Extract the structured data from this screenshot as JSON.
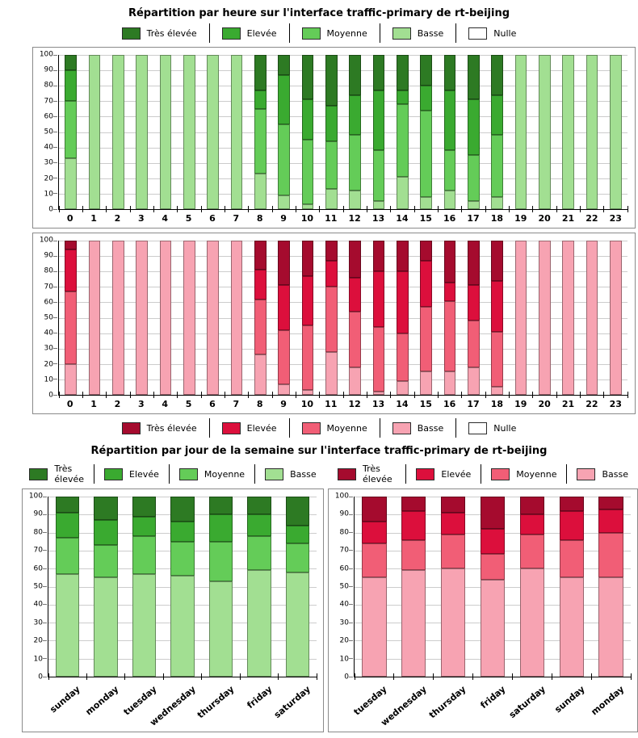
{
  "titles": {
    "hourly": "Répartition par heure sur l'interface traffic-primary de rt-beijing",
    "daily": "Répartition par jour de la semaine sur l'interface traffic-primary de rt-beijing"
  },
  "colors": {
    "green": {
      "tres_elevee": "#2d7a23",
      "elevee": "#3aaa30",
      "moyenne": "#64cc58",
      "basse": "#a2df92",
      "nulle": "#ffffff"
    },
    "red": {
      "tres_elevee": "#a50b2e",
      "elevee": "#dc0f3c",
      "moyenne": "#f15e76",
      "basse": "#f7a3b2",
      "nulle": "#ffffff"
    }
  },
  "chart_data": [
    {
      "id": "hourly-green",
      "type": "bar",
      "stacked": true,
      "title": "Répartition par heure sur l'interface traffic-primary de rt-beijing",
      "palette": "green",
      "legend": [
        {
          "label": "Très élevée",
          "key": "tres_elevee"
        },
        {
          "label": "Elevée",
          "key": "elevee"
        },
        {
          "label": "Moyenne",
          "key": "moyenne"
        },
        {
          "label": "Basse",
          "key": "basse"
        },
        {
          "label": "Nulle",
          "key": "nulle"
        }
      ],
      "categories": [
        "0",
        "1",
        "2",
        "3",
        "4",
        "5",
        "6",
        "7",
        "8",
        "9",
        "10",
        "11",
        "12",
        "13",
        "14",
        "15",
        "16",
        "17",
        "18",
        "19",
        "20",
        "21",
        "22",
        "23"
      ],
      "ylim": [
        0,
        100
      ],
      "ytick_step": 10,
      "grid": true,
      "xlabel_rotation": 0,
      "stack_order": "bottom-to-top",
      "series": [
        {
          "name": "Basse",
          "key": "basse",
          "values": [
            33,
            100,
            100,
            100,
            100,
            100,
            100,
            100,
            23,
            9,
            3,
            13,
            12,
            5,
            21,
            8,
            12,
            5,
            8,
            100,
            100,
            100,
            100,
            100
          ]
        },
        {
          "name": "Moyenne",
          "key": "moyenne",
          "values": [
            37,
            0,
            0,
            0,
            0,
            0,
            0,
            0,
            42,
            46,
            42,
            31,
            36,
            33,
            47,
            56,
            26,
            30,
            40,
            0,
            0,
            0,
            0,
            0
          ]
        },
        {
          "name": "Elevée",
          "key": "elevee",
          "values": [
            20,
            0,
            0,
            0,
            0,
            0,
            0,
            0,
            12,
            32,
            26,
            23,
            26,
            39,
            9,
            16,
            39,
            36,
            26,
            0,
            0,
            0,
            0,
            0
          ]
        },
        {
          "name": "Très élevée",
          "key": "tres_elevee",
          "values": [
            10,
            0,
            0,
            0,
            0,
            0,
            0,
            0,
            23,
            13,
            29,
            33,
            26,
            23,
            23,
            20,
            23,
            29,
            26,
            0,
            0,
            0,
            0,
            0
          ]
        }
      ]
    },
    {
      "id": "hourly-red",
      "type": "bar",
      "stacked": true,
      "title": "Répartition par heure sur l'interface traffic-primary de rt-beijing",
      "palette": "red",
      "legend": [
        {
          "label": "Très élevée",
          "key": "tres_elevee"
        },
        {
          "label": "Elevée",
          "key": "elevee"
        },
        {
          "label": "Moyenne",
          "key": "moyenne"
        },
        {
          "label": "Basse",
          "key": "basse"
        },
        {
          "label": "Nulle",
          "key": "nulle"
        }
      ],
      "categories": [
        "0",
        "1",
        "2",
        "3",
        "4",
        "5",
        "6",
        "7",
        "8",
        "9",
        "10",
        "11",
        "12",
        "13",
        "14",
        "15",
        "16",
        "17",
        "18",
        "19",
        "20",
        "21",
        "22",
        "23"
      ],
      "ylim": [
        0,
        100
      ],
      "ytick_step": 10,
      "grid": true,
      "xlabel_rotation": 0,
      "stack_order": "bottom-to-top",
      "series": [
        {
          "name": "Basse",
          "key": "basse",
          "values": [
            20,
            100,
            100,
            100,
            100,
            100,
            100,
            100,
            26,
            7,
            3,
            28,
            18,
            2,
            9,
            15,
            15,
            18,
            5,
            100,
            100,
            100,
            100,
            100
          ]
        },
        {
          "name": "Moyenne",
          "key": "moyenne",
          "values": [
            47,
            0,
            0,
            0,
            0,
            0,
            0,
            0,
            36,
            35,
            42,
            42,
            36,
            42,
            31,
            42,
            46,
            30,
            36,
            0,
            0,
            0,
            0,
            0
          ]
        },
        {
          "name": "Elevée",
          "key": "elevee",
          "values": [
            27,
            0,
            0,
            0,
            0,
            0,
            0,
            0,
            19,
            29,
            32,
            17,
            22,
            36,
            40,
            30,
            12,
            23,
            33,
            0,
            0,
            0,
            0,
            0
          ]
        },
        {
          "name": "Très élevée",
          "key": "tres_elevee",
          "values": [
            6,
            0,
            0,
            0,
            0,
            0,
            0,
            0,
            19,
            29,
            23,
            13,
            24,
            20,
            20,
            13,
            27,
            29,
            26,
            0,
            0,
            0,
            0,
            0
          ]
        }
      ]
    },
    {
      "id": "daily-green",
      "type": "bar",
      "stacked": true,
      "title": "Répartition par jour de la semaine sur l'interface traffic-primary de rt-beijing",
      "palette": "green",
      "legend": [
        {
          "label": "Très élevée",
          "key": "tres_elevee"
        },
        {
          "label": "Elevée",
          "key": "elevee"
        },
        {
          "label": "Moyenne",
          "key": "moyenne"
        },
        {
          "label": "Basse",
          "key": "basse"
        }
      ],
      "categories": [
        "sunday",
        "monday",
        "tuesday",
        "wednesday",
        "thursday",
        "friday",
        "saturday"
      ],
      "ylim": [
        0,
        100
      ],
      "ytick_step": 10,
      "grid": true,
      "xlabel_rotation": 40,
      "stack_order": "bottom-to-top",
      "series": [
        {
          "name": "Basse",
          "key": "basse",
          "values": [
            57,
            55,
            57,
            56,
            53,
            59,
            58
          ]
        },
        {
          "name": "Moyenne",
          "key": "moyenne",
          "values": [
            20,
            18,
            21,
            19,
            22,
            19,
            16
          ]
        },
        {
          "name": "Elevée",
          "key": "elevee",
          "values": [
            14,
            14,
            11,
            11,
            15,
            12,
            10
          ]
        },
        {
          "name": "Très élevée",
          "key": "tres_elevee",
          "values": [
            9,
            13,
            11,
            14,
            10,
            10,
            16
          ]
        }
      ]
    },
    {
      "id": "daily-red",
      "type": "bar",
      "stacked": true,
      "title": "Répartition par jour de la semaine sur l'interface traffic-primary de rt-beijing",
      "palette": "red",
      "legend": [
        {
          "label": "Très élevée",
          "key": "tres_elevee"
        },
        {
          "label": "Elevée",
          "key": "elevee"
        },
        {
          "label": "Moyenne",
          "key": "moyenne"
        },
        {
          "label": "Basse",
          "key": "basse"
        }
      ],
      "categories": [
        "tuesday",
        "wednesday",
        "thursday",
        "friday",
        "saturday",
        "sunday",
        "monday"
      ],
      "ylim": [
        0,
        100
      ],
      "ytick_step": 10,
      "grid": true,
      "xlabel_rotation": 40,
      "stack_order": "bottom-to-top",
      "series": [
        {
          "name": "Basse",
          "key": "basse",
          "values": [
            55,
            59,
            60,
            54,
            60,
            55,
            55
          ]
        },
        {
          "name": "Moyenne",
          "key": "moyenne",
          "values": [
            19,
            17,
            19,
            14,
            19,
            21,
            25
          ]
        },
        {
          "name": "Elevée",
          "key": "elevee",
          "values": [
            12,
            16,
            12,
            14,
            11,
            16,
            13
          ]
        },
        {
          "name": "Très élevée",
          "key": "tres_elevee",
          "values": [
            14,
            8,
            9,
            18,
            10,
            8,
            7
          ]
        }
      ]
    }
  ]
}
